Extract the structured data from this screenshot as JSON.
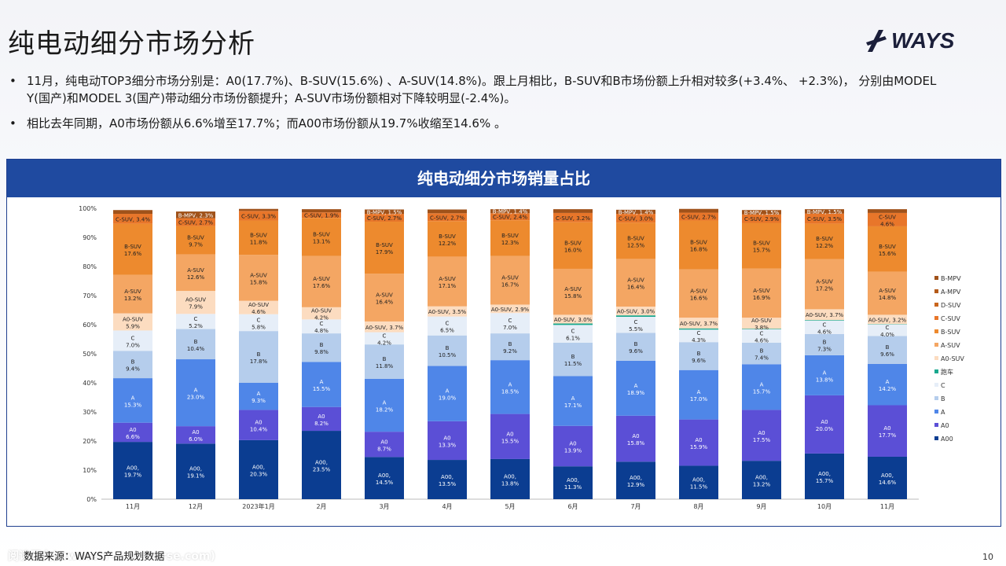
{
  "title": "纯电动细分市场分析",
  "logo_text": "WAYS",
  "bullets": [
    "11月，纯电动TOP3细分市场分别是：A0(17.7%)、B-SUV(15.6%) 、A-SUV(14.8%)。跟上月相比，B-SUV和B市场份额上升相对较多(+3.4%、 +2.3%)， 分别由MODEL Y(国产)和MODEL 3(国产)带动细分市场份额提升；A-SUV市场份额相对下降较明显(-2.4%)。",
    "相比去年同期，A0市场份额从6.6%增至17.7%；而A00市场份额从19.7%收缩至14.6% 。"
  ],
  "panel_title": "纯电动细分市场销量占比",
  "footer_note": "数据来源：WAYS产品规划数据",
  "source_url": "阅读原文(www.car-metaverse.com)",
  "page_number": "10",
  "chart_data": {
    "type": "bar",
    "stacked": true,
    "ylim": [
      0,
      100
    ],
    "ytick_labels": [
      "0%",
      "10%",
      "20%",
      "30%",
      "40%",
      "50%",
      "60%",
      "70%",
      "80%",
      "90%",
      "100%"
    ],
    "categories": [
      "11月",
      "12月",
      "2023年1月",
      "2月",
      "3月",
      "4月",
      "5月",
      "6月",
      "7月",
      "8月",
      "9月",
      "10月",
      "11月"
    ],
    "legend_position": "right",
    "series": [
      {
        "name": "A00",
        "color": "#0b3d91",
        "label": "A00,",
        "values": [
          19.7,
          19.1,
          20.3,
          23.5,
          14.5,
          13.5,
          13.8,
          11.3,
          12.9,
          11.5,
          13.2,
          15.7,
          14.6
        ]
      },
      {
        "name": "A0",
        "color": "#5b4fd6",
        "label": "A0",
        "values": [
          6.6,
          6.0,
          10.4,
          8.2,
          8.7,
          13.3,
          15.5,
          13.9,
          15.8,
          15.9,
          17.5,
          20.0,
          17.7
        ]
      },
      {
        "name": "A",
        "color": "#4f86e8",
        "label": "A",
        "values": [
          15.3,
          23.0,
          9.3,
          15.5,
          18.2,
          19.0,
          18.5,
          17.1,
          18.9,
          17.0,
          15.7,
          13.8,
          14.2
        ]
      },
      {
        "name": "B",
        "color": "#b5cdec",
        "label": "B",
        "values": [
          9.4,
          10.4,
          17.8,
          9.8,
          11.8,
          10.5,
          9.2,
          11.5,
          9.6,
          9.6,
          7.4,
          7.3,
          9.6
        ]
      },
      {
        "name": "C",
        "color": "#e6eef8",
        "label": "C",
        "values": [
          7.0,
          5.2,
          5.8,
          4.8,
          4.2,
          6.5,
          7.0,
          6.1,
          5.5,
          4.3,
          4.6,
          4.6,
          4.0
        ]
      },
      {
        "name": "跑车",
        "color": "#1aa88e",
        "label": "跑车",
        "values": [
          0,
          0,
          0,
          0,
          0,
          0,
          0,
          0.5,
          0.5,
          0.4,
          0.2,
          0.2,
          0.1
        ]
      },
      {
        "name": "A0-SUV",
        "color": "#fcdcc0",
        "label": "A0-SUV",
        "values": [
          5.9,
          7.9,
          4.6,
          4.2,
          3.7,
          3.5,
          2.9,
          3.0,
          3.0,
          3.7,
          3.8,
          3.7,
          3.2
        ]
      },
      {
        "name": "A-SUV",
        "color": "#f4a663",
        "label": "A-SUV",
        "values": [
          13.2,
          12.6,
          15.8,
          17.6,
          16.4,
          17.1,
          16.7,
          15.8,
          16.4,
          16.6,
          16.9,
          17.2,
          14.8
        ]
      },
      {
        "name": "B-SUV",
        "color": "#ed8a2e",
        "label": "B-SUV",
        "values": [
          17.6,
          9.7,
          11.8,
          13.1,
          17.9,
          12.2,
          12.3,
          16.0,
          12.5,
          16.8,
          15.7,
          12.2,
          15.6
        ]
      },
      {
        "name": "C-SUV",
        "color": "#e8762a",
        "label": "C-SUV",
        "values": [
          3.4,
          2.7,
          3.3,
          1.9,
          2.7,
          2.7,
          2.4,
          3.2,
          3.0,
          2.7,
          2.9,
          3.5,
          4.6
        ]
      },
      {
        "name": "D-SUV",
        "color": "#c9651d",
        "label": "D-SUV",
        "values": [
          0,
          0,
          0,
          0,
          0,
          0,
          0,
          0,
          0,
          0,
          0,
          0,
          0
        ]
      },
      {
        "name": "A-MPV",
        "color": "#b45a19",
        "label": "A-MPV",
        "values": [
          0,
          0,
          0,
          0,
          0,
          0,
          0,
          0,
          0,
          0,
          0,
          0,
          0
        ]
      },
      {
        "name": "B-MPV",
        "color": "#a0521a",
        "label": "B-MPV",
        "values": [
          1.3,
          2.3,
          0.7,
          1.1,
          1.5,
          1.3,
          1.4,
          1.3,
          1.4,
          1.3,
          1.5,
          1.5,
          1.3
        ]
      }
    ],
    "legend_order": [
      "B-MPV",
      "A-MPV",
      "D-SUV",
      "C-SUV",
      "B-SUV",
      "A-SUV",
      "A0-SUV",
      "跑车",
      "C",
      "B",
      "A",
      "A0",
      "A00"
    ]
  }
}
